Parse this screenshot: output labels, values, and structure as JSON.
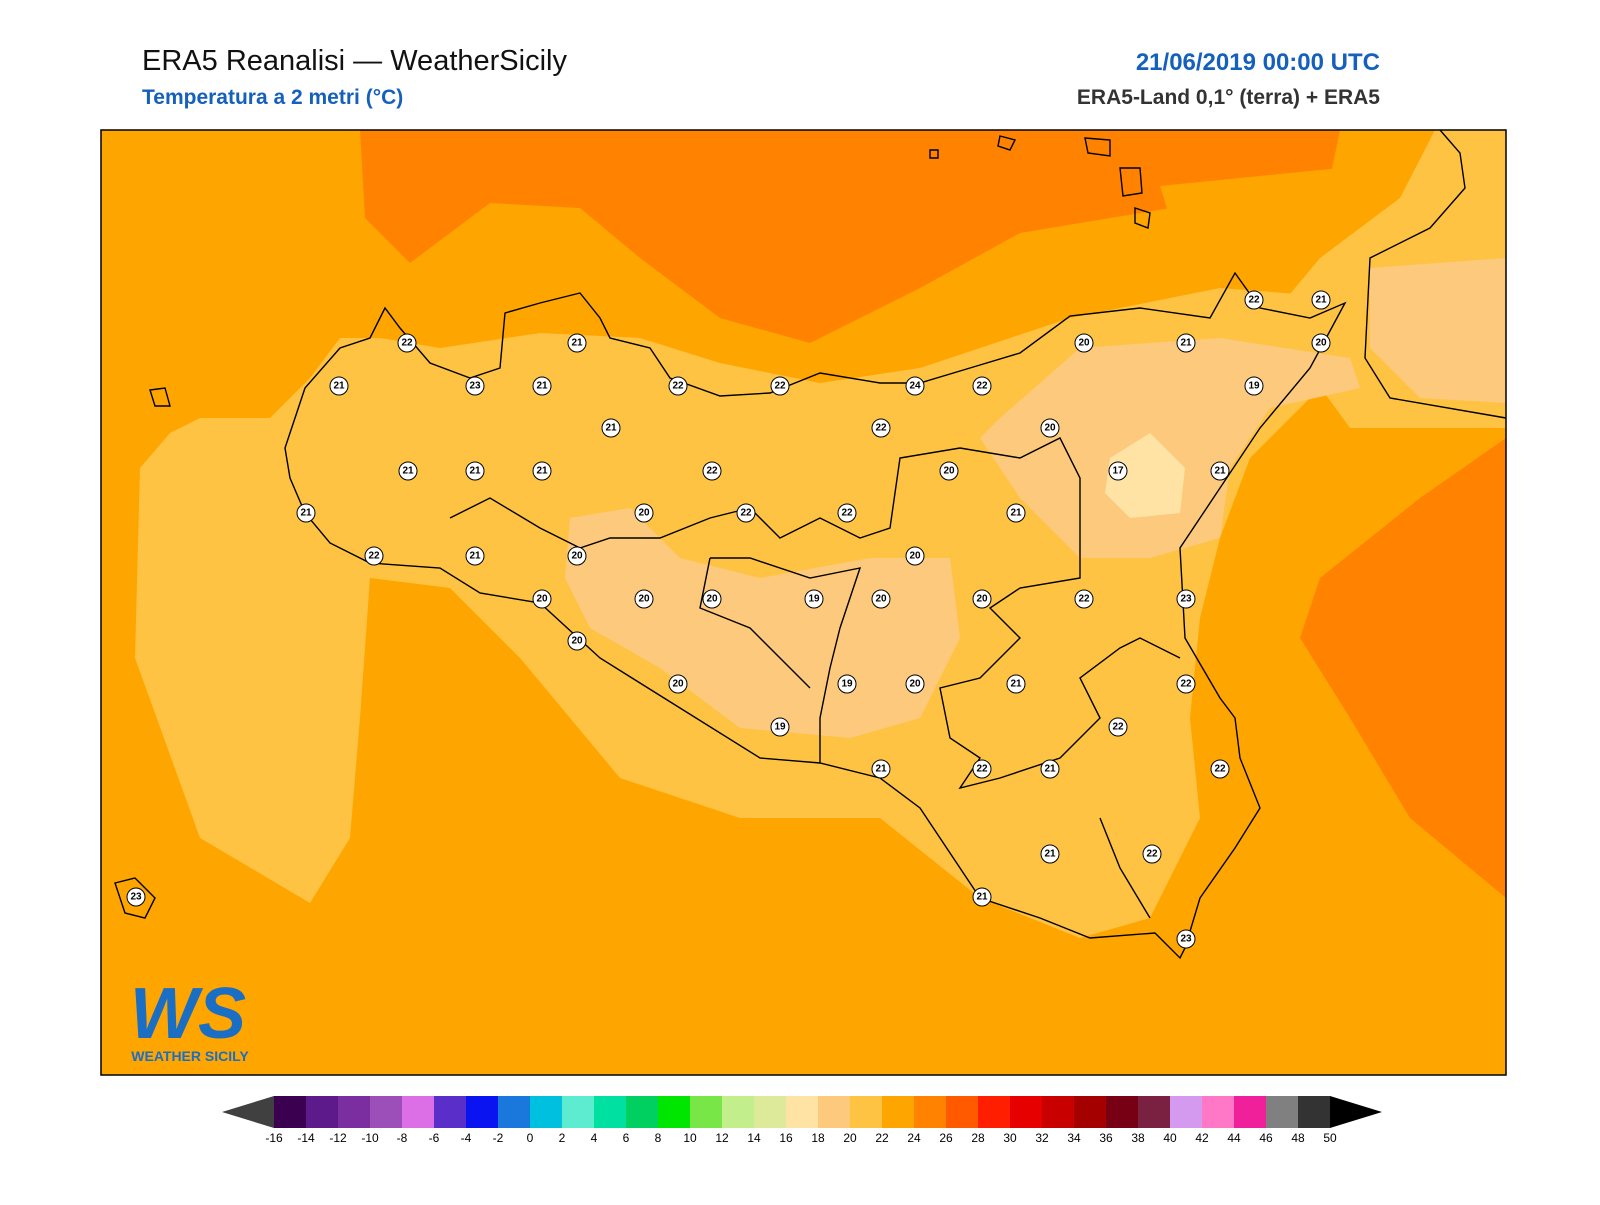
{
  "header": {
    "title": "ERA5 Reanalisi — WeatherSicily",
    "subtitle": "Temperatura a 2 metri (°C)",
    "date": "21/06/2019 00:00 UTC",
    "source": "ERA5-Land 0,1° (terra) + ERA5"
  },
  "logo": {
    "mark": "WS",
    "text": "WEATHER SICILY"
  },
  "stations": [
    22,
    21,
    21,
    23,
    21,
    22,
    22,
    21,
    21,
    21,
    21,
    22,
    21,
    20,
    22,
    22,
    22,
    21,
    20,
    20,
    20,
    20,
    19,
    20,
    20,
    20,
    19,
    19,
    20,
    21,
    24,
    22,
    22,
    20,
    20,
    21,
    20,
    20,
    21,
    22,
    21,
    20,
    19,
    20,
    17,
    21,
    22,
    23,
    21,
    22,
    22,
    22,
    21,
    22,
    21,
    22,
    21,
    23,
    23
  ],
  "colorbar": {
    "ticks": [
      -16,
      -14,
      -12,
      -10,
      -8,
      -6,
      -4,
      -2,
      0,
      2,
      4,
      6,
      8,
      10,
      12,
      14,
      16,
      18,
      20,
      22,
      24,
      26,
      28,
      30,
      32,
      34,
      36,
      38,
      40,
      42,
      44,
      46,
      48,
      50
    ],
    "colors": [
      "#3c0050",
      "#5d1a8a",
      "#7a2ea0",
      "#9c4fb8",
      "#dc6ee6",
      "#5a2ec8",
      "#0a14f0",
      "#1a78dc",
      "#00c0e0",
      "#5eecd0",
      "#00e0a0",
      "#00d060",
      "#00e600",
      "#78e646",
      "#c3ee8c",
      "#dcea9a",
      "#fee3a5",
      "#fdc97c",
      "#fec343",
      "#ffa500",
      "#ff8200",
      "#ff5a00",
      "#ff1e00",
      "#e60000",
      "#c80000",
      "#a50000",
      "#780014",
      "#7a2040",
      "#d49af0",
      "#ff78c8",
      "#f0209a",
      "#808080",
      "#333333"
    ],
    "under_color": "#404040",
    "over_color": "#000000"
  }
}
